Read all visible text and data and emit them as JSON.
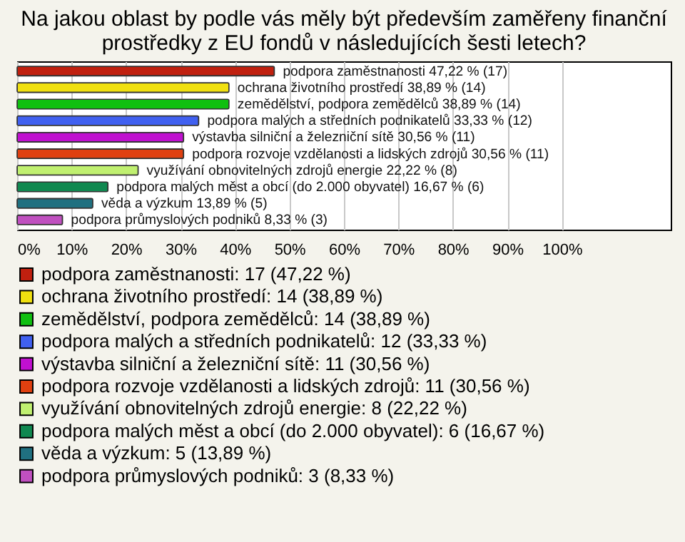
{
  "chart_data": {
    "type": "bar",
    "orientation": "horizontal",
    "stacked": true,
    "title": "Na jakou oblast by podle vás měly být především zaměřeny finanční prostředky z EU fondů v následujících šesti letech?",
    "categories": [
      null,
      null,
      null,
      null,
      null,
      null,
      null,
      null,
      null,
      null
    ],
    "xlim": [
      0,
      120
    ],
    "xticks": [
      {
        "value": 0,
        "label": "0%"
      },
      {
        "value": 10,
        "label": "10%"
      },
      {
        "value": 20,
        "label": "20%"
      },
      {
        "value": 30,
        "label": "30%"
      },
      {
        "value": 40,
        "label": "40%"
      },
      {
        "value": 50,
        "label": "50%"
      },
      {
        "value": 60,
        "label": "60%"
      },
      {
        "value": 70,
        "label": "70%"
      },
      {
        "value": 80,
        "label": "80%"
      },
      {
        "value": 90,
        "label": "90%"
      },
      {
        "value": 100,
        "label": "100%"
      }
    ],
    "grid": "x",
    "tick_labels": "x",
    "legend": "bottom",
    "series": [
      {
        "name": "podpora zaměstnanosti: 17 (47,22 %)",
        "color": "#c0200f",
        "values": [
          47.22,
          null,
          null,
          null,
          null,
          null,
          null,
          null,
          null,
          null
        ],
        "value_labels": [
          "podpora zaměstnanosti 47,22 % (17)",
          null,
          null,
          null,
          null,
          null,
          null,
          null,
          null,
          null
        ]
      },
      {
        "name": "ochrana životního prostředí: 14 (38,89 %)",
        "color": "#f0e010",
        "values": [
          null,
          38.89,
          null,
          null,
          null,
          null,
          null,
          null,
          null,
          null
        ],
        "value_labels": [
          null,
          "ochrana životního prostředí 38,89 % (14)",
          null,
          null,
          null,
          null,
          null,
          null,
          null,
          null
        ]
      },
      {
        "name": "zemědělství, podpora zemědělců: 14 (38,89 %)",
        "color": "#10c010",
        "values": [
          null,
          null,
          38.89,
          null,
          null,
          null,
          null,
          null,
          null,
          null
        ],
        "value_labels": [
          null,
          null,
          "zemědělství, podpora zemědělců 38,89 % (14)",
          null,
          null,
          null,
          null,
          null,
          null,
          null
        ]
      },
      {
        "name": "podpora malých a středních podnikatelů: 12 (33,33 %)",
        "color": "#4060f0",
        "values": [
          null,
          null,
          null,
          33.33,
          null,
          null,
          null,
          null,
          null,
          null
        ],
        "value_labels": [
          null,
          null,
          null,
          "podpora malých a středních podnikatelů 33,33 % (12)",
          null,
          null,
          null,
          null,
          null,
          null
        ]
      },
      {
        "name": "výstavba silniční a železniční sítě: 11 (30,56 %)",
        "color": "#c010d0",
        "values": [
          null,
          null,
          null,
          null,
          30.56,
          null,
          null,
          null,
          null,
          null
        ],
        "value_labels": [
          null,
          null,
          null,
          null,
          "výstavba silniční a železniční sítě 30,56 % (11)",
          null,
          null,
          null,
          null,
          null
        ]
      },
      {
        "name": "podpora rozvoje vzdělanosti a lidských zdrojů: 11 (30,56 %)",
        "color": "#e04010",
        "values": [
          null,
          null,
          null,
          null,
          null,
          30.56,
          null,
          null,
          null,
          null
        ],
        "value_labels": [
          null,
          null,
          null,
          null,
          null,
          "podpora rozvoje vzdělanosti a lidských zdrojů 30,56 % (11)",
          null,
          null,
          null,
          null
        ]
      },
      {
        "name": "využívání obnovitelných zdrojů energie: 8 (22,22 %)",
        "color": "#c0f070",
        "values": [
          null,
          null,
          null,
          null,
          null,
          null,
          22.22,
          null,
          null,
          null
        ],
        "value_labels": [
          null,
          null,
          null,
          null,
          null,
          null,
          "využívání obnovitelných zdrojů energie 22,22 % (8)",
          null,
          null,
          null
        ]
      },
      {
        "name": "podpora malých měst a obcí (do 2.000 obyvatel): 6 (16,67 %)",
        "color": "#108850",
        "values": [
          null,
          null,
          null,
          null,
          null,
          null,
          null,
          16.67,
          null,
          null
        ],
        "value_labels": [
          null,
          null,
          null,
          null,
          null,
          null,
          null,
          "podpora malých měst a obcí (do 2.000 obyvatel) 16,67 % (6)",
          null,
          null
        ]
      },
      {
        "name": "věda a výzkum: 5 (13,89 %)",
        "color": "#207080",
        "values": [
          null,
          null,
          null,
          null,
          null,
          null,
          null,
          null,
          13.89,
          null
        ],
        "value_labels": [
          null,
          null,
          null,
          null,
          null,
          null,
          null,
          null,
          "věda a výzkum 13,89 % (5)",
          null
        ]
      },
      {
        "name": "podpora průmyslových podniků: 3 (8,33 %)",
        "color": "#c050c0",
        "values": [
          null,
          null,
          null,
          null,
          null,
          null,
          null,
          null,
          null,
          8.33
        ],
        "value_labels": [
          null,
          null,
          null,
          null,
          null,
          null,
          null,
          null,
          null,
          "podpora průmyslových podniků 8,33 % (3)"
        ]
      }
    ]
  }
}
